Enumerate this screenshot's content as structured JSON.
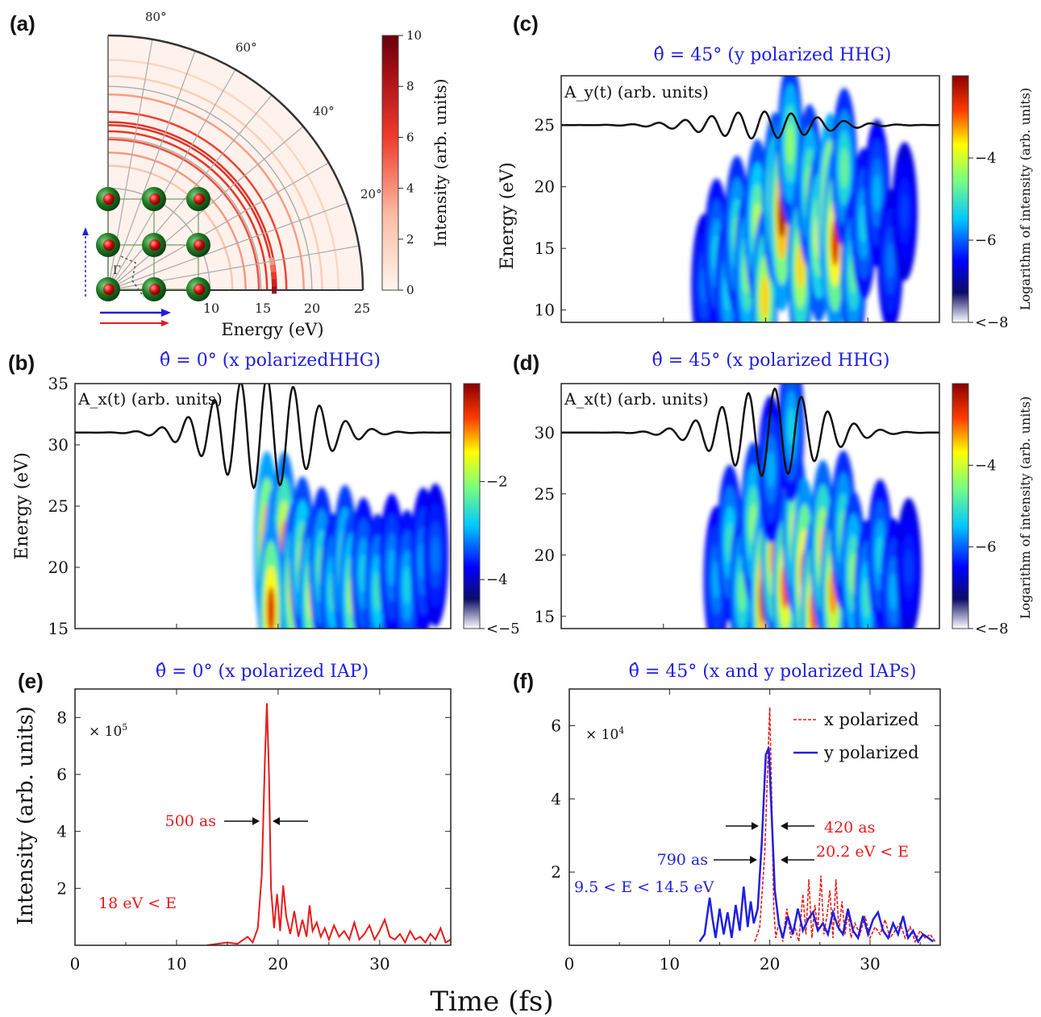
{
  "colors": {
    "blue": "#1f1fe0",
    "red": "#e81b1b",
    "black": "#111111",
    "green": "#1e6b22"
  },
  "panel_letters": [
    "(a)",
    "(b)",
    "(c)",
    "(d)",
    "(e)",
    "(f)"
  ],
  "chart_data": [
    {
      "id": "a",
      "type": "heatmap",
      "subtype": "polar",
      "xlabel": "Energy (eV)",
      "radial_ticks": [
        "10",
        "15",
        "20",
        "25"
      ],
      "angle_ticks": [
        "20°",
        "40°",
        "60°",
        "80°"
      ],
      "colorbar": {
        "label": "Intensity (arb. units)",
        "ticks": [
          "0",
          "2",
          "4",
          "6",
          "8",
          "10"
        ],
        "range": [
          0,
          10
        ]
      },
      "rings_eV": [
        16.2,
        16.5,
        15.6,
        14.8,
        17.5,
        19.2,
        21.0,
        22.6,
        12.2,
        13.5
      ],
      "features": {
        "hot_spot": {
          "angle_deg": 0,
          "energy_eV": 16.3
        }
      }
    },
    {
      "id": "b",
      "type": "heatmap",
      "title": "θ̂ = 0° (x polarizedHHG)",
      "ylabel": "Energy (eV)",
      "ylim": [
        15,
        35
      ],
      "xlim": [
        0,
        37
      ],
      "yticks": [
        "15",
        "20",
        "25",
        "30",
        "35"
      ],
      "inset_label": "A_x(t) (arb. units)",
      "colorbar": {
        "ticks": [
          "−2",
          "−4",
          "<−5"
        ],
        "range": [
          -5,
          0
        ]
      },
      "blobs": [
        {
          "t": 18.9,
          "E": 21.5,
          "v": 0.95
        },
        {
          "t": 19.7,
          "E": 19.0,
          "v": 0.9
        },
        {
          "t": 20.6,
          "E": 22.0,
          "v": 0.8
        },
        {
          "t": 21.5,
          "E": 18.0,
          "v": 0.75
        },
        {
          "t": 22.4,
          "E": 20.5,
          "v": 0.65
        },
        {
          "t": 23.3,
          "E": 17.5,
          "v": 0.7
        },
        {
          "t": 24.3,
          "E": 20.0,
          "v": 0.55
        },
        {
          "t": 25.4,
          "E": 18.0,
          "v": 0.5
        },
        {
          "t": 26.6,
          "E": 20.0,
          "v": 0.6
        },
        {
          "t": 27.3,
          "E": 17.8,
          "v": 0.65
        },
        {
          "t": 28.4,
          "E": 19.5,
          "v": 0.45
        },
        {
          "t": 29.8,
          "E": 18.0,
          "v": 0.5
        },
        {
          "t": 31.2,
          "E": 20.0,
          "v": 0.4
        },
        {
          "t": 32.7,
          "E": 18.5,
          "v": 0.45
        },
        {
          "t": 34.3,
          "E": 20.5,
          "v": 0.4
        },
        {
          "t": 35.5,
          "E": 21.0,
          "v": 0.35
        },
        {
          "t": 19.3,
          "E": 16.5,
          "v": 0.9
        }
      ],
      "vector_potential": {
        "baseline_E": 31,
        "period_fs": 2.6,
        "center_fs": 18.5,
        "width_fs": 6.5,
        "amp_E": 4.6
      }
    },
    {
      "id": "c",
      "type": "heatmap",
      "title": "θ̂ = 45° (y polarized HHG)",
      "ylabel": "Energy (eV)",
      "ylim": [
        9,
        29
      ],
      "xlim": [
        0,
        37
      ],
      "yticks": [
        "10",
        "15",
        "20",
        "25"
      ],
      "inset_label": "A_y(t) (arb. units)",
      "colorbar": {
        "label": "Logarithm of intensity (arb. units)",
        "ticks": [
          "−4",
          "−6",
          "<−8"
        ],
        "range": [
          -8,
          -2
        ]
      },
      "blobs": [
        {
          "t": 14.0,
          "E": 12.0,
          "v": 0.35
        },
        {
          "t": 15.2,
          "E": 14.5,
          "v": 0.45
        },
        {
          "t": 16.3,
          "E": 11.5,
          "v": 0.45
        },
        {
          "t": 17.2,
          "E": 16.0,
          "v": 0.55
        },
        {
          "t": 18.2,
          "E": 13.0,
          "v": 0.6
        },
        {
          "t": 19.2,
          "E": 17.0,
          "v": 0.65
        },
        {
          "t": 19.9,
          "E": 11.0,
          "v": 0.75
        },
        {
          "t": 20.9,
          "E": 19.0,
          "v": 0.7
        },
        {
          "t": 21.6,
          "E": 17.8,
          "v": 0.95
        },
        {
          "t": 22.4,
          "E": 23.5,
          "v": 0.6
        },
        {
          "t": 23.4,
          "E": 13.5,
          "v": 0.75
        },
        {
          "t": 24.3,
          "E": 20.0,
          "v": 0.6
        },
        {
          "t": 25.2,
          "E": 16.0,
          "v": 0.7
        },
        {
          "t": 26.3,
          "E": 18.0,
          "v": 0.97
        },
        {
          "t": 26.8,
          "E": 15.5,
          "v": 0.9
        },
        {
          "t": 27.7,
          "E": 21.5,
          "v": 0.55
        },
        {
          "t": 28.6,
          "E": 13.0,
          "v": 0.55
        },
        {
          "t": 29.6,
          "E": 17.0,
          "v": 0.45
        },
        {
          "t": 30.9,
          "E": 19.5,
          "v": 0.4
        },
        {
          "t": 32.2,
          "E": 14.0,
          "v": 0.35
        },
        {
          "t": 33.6,
          "E": 18.0,
          "v": 0.3
        }
      ],
      "vector_potential": {
        "baseline_E": 25,
        "period_fs": 2.6,
        "center_fs": 19.5,
        "width_fs": 7.5,
        "amp_E": 1.1
      }
    },
    {
      "id": "d",
      "type": "heatmap",
      "title": "θ̂ = 45° (x polarized HHG)",
      "ylim": [
        14,
        34
      ],
      "xlim": [
        0,
        37
      ],
      "yticks": [
        "15",
        "20",
        "25",
        "30"
      ],
      "inset_label": "A_x(t) (arb. units)",
      "colorbar": {
        "label": "Logarithm of intensity (arb. units)",
        "ticks": [
          "−4",
          "−6",
          "<−8"
        ],
        "range": [
          -8,
          -2
        ]
      },
      "blobs": [
        {
          "t": 15.2,
          "E": 18.0,
          "v": 0.4
        },
        {
          "t": 16.5,
          "E": 21.0,
          "v": 0.5
        },
        {
          "t": 17.7,
          "E": 17.0,
          "v": 0.55
        },
        {
          "t": 18.8,
          "E": 22.5,
          "v": 0.6
        },
        {
          "t": 19.8,
          "E": 16.5,
          "v": 0.95
        },
        {
          "t": 20.8,
          "E": 20.0,
          "v": 0.8
        },
        {
          "t": 21.9,
          "E": 17.5,
          "v": 0.85
        },
        {
          "t": 22.9,
          "E": 22.0,
          "v": 0.7
        },
        {
          "t": 23.8,
          "E": 18.5,
          "v": 0.9
        },
        {
          "t": 24.7,
          "E": 15.5,
          "v": 0.85
        },
        {
          "t": 25.6,
          "E": 20.5,
          "v": 0.75
        },
        {
          "t": 26.6,
          "E": 17.0,
          "v": 0.8
        },
        {
          "t": 27.6,
          "E": 22.0,
          "v": 0.55
        },
        {
          "t": 28.6,
          "E": 18.5,
          "v": 0.6
        },
        {
          "t": 29.9,
          "E": 16.5,
          "v": 0.5
        },
        {
          "t": 31.2,
          "E": 20.0,
          "v": 0.45
        },
        {
          "t": 32.5,
          "E": 17.0,
          "v": 0.4
        },
        {
          "t": 34.0,
          "E": 19.0,
          "v": 0.3
        },
        {
          "t": 22.5,
          "E": 30.5,
          "v": 0.45
        },
        {
          "t": 20.5,
          "E": 27.0,
          "v": 0.4
        }
      ],
      "vector_potential": {
        "baseline_E": 30,
        "period_fs": 2.6,
        "center_fs": 20.5,
        "width_fs": 6.5,
        "amp_E": 3.6
      }
    },
    {
      "id": "e",
      "type": "line",
      "title": "θ̂ = 0° (x polarized IAP)",
      "ylabel": "Intensity (arb. units)",
      "xlim": [
        0,
        37
      ],
      "ylim": [
        0,
        9
      ],
      "xticks": [
        "0",
        "10",
        "20",
        "30"
      ],
      "yticks": [
        "2",
        "4",
        "6",
        "8"
      ],
      "multiplier": "× 10",
      "multiplier_exp": "5",
      "annotations": {
        "width": "500 as",
        "range": "18 eV < E"
      },
      "series": [
        {
          "color": "#e81b1b",
          "x": [
            13.0,
            14.0,
            15.0,
            16.0,
            17.0,
            17.5,
            18.0,
            18.4,
            18.7,
            18.9,
            19.1,
            19.3,
            19.6,
            19.9,
            20.2,
            20.5,
            20.8,
            21.2,
            21.6,
            22.0,
            22.4,
            22.8,
            23.1,
            23.4,
            23.8,
            24.2,
            24.6,
            25.0,
            25.5,
            26.0,
            26.5,
            27.0,
            27.5,
            28.0,
            28.5,
            29.0,
            29.5,
            30.0,
            30.5,
            31.0,
            31.5,
            32.0,
            32.5,
            33.0,
            33.5,
            34.0,
            34.5,
            35.0,
            35.5,
            36.0,
            36.5,
            37.0
          ],
          "y": [
            0.0,
            0.05,
            0.1,
            0.05,
            0.3,
            0.1,
            0.6,
            2.5,
            6.5,
            8.5,
            6.0,
            2.0,
            0.6,
            1.8,
            0.5,
            2.1,
            1.0,
            0.4,
            1.2,
            0.3,
            0.9,
            0.3,
            1.4,
            0.5,
            0.8,
            0.3,
            0.6,
            0.2,
            0.7,
            0.3,
            0.5,
            0.2,
            0.8,
            0.2,
            0.4,
            0.7,
            0.2,
            0.5,
            0.9,
            0.3,
            0.2,
            0.4,
            0.1,
            0.5,
            0.2,
            0.3,
            0.1,
            0.4,
            0.2,
            0.6,
            0.1,
            0.2
          ]
        }
      ]
    },
    {
      "id": "f",
      "type": "line",
      "title": "θ̂ = 45° (x and y polarized IAPs)",
      "xlim": [
        0,
        37
      ],
      "ylim": [
        0,
        7
      ],
      "xticks": [
        "0",
        "10",
        "20",
        "30"
      ],
      "yticks": [
        "2",
        "4",
        "6"
      ],
      "xlabel": "Time (fs)",
      "multiplier": "× 10",
      "multiplier_exp": "4",
      "annotations": {
        "width_x": "420 as",
        "range_x": "20.2 eV < E",
        "width_y": "790 as",
        "range_y": "9.5 < E < 14.5 eV"
      },
      "legend": [
        "x polarized",
        "y polarized"
      ],
      "series": [
        {
          "name": "x polarized",
          "color": "#e81b1b",
          "dash": true,
          "x": [
            18.5,
            19.0,
            19.5,
            19.8,
            20.0,
            20.2,
            20.4,
            20.6,
            20.9,
            21.3,
            21.7,
            22.1,
            22.5,
            22.9,
            23.3,
            23.6,
            23.9,
            24.2,
            24.5,
            24.8,
            25.1,
            25.4,
            25.7,
            26.0,
            26.3,
            26.6,
            26.9,
            27.2,
            27.5,
            27.8,
            28.1,
            28.5,
            29.0,
            29.5,
            30.0,
            30.5,
            31.0,
            31.5,
            32.0,
            32.5,
            33.0,
            33.5,
            34.0,
            34.5,
            35.0,
            35.5,
            36.0,
            36.5
          ],
          "y": [
            0.1,
            0.5,
            2.5,
            5.0,
            6.5,
            4.0,
            1.0,
            0.2,
            0.6,
            0.1,
            1.0,
            0.2,
            0.5,
            0.1,
            1.4,
            0.3,
            1.8,
            0.2,
            1.1,
            0.4,
            1.9,
            0.3,
            0.8,
            1.5,
            0.2,
            1.8,
            0.4,
            1.2,
            0.3,
            0.9,
            0.2,
            0.6,
            0.3,
            0.8,
            0.2,
            0.5,
            0.3,
            0.7,
            0.2,
            0.4,
            0.6,
            0.2,
            0.5,
            0.1,
            0.4,
            0.2,
            0.3,
            0.1
          ]
        },
        {
          "name": "y polarized",
          "color": "#1f1fe0",
          "dash": false,
          "x": [
            13.0,
            13.5,
            14.0,
            14.3,
            14.6,
            15.0,
            15.4,
            15.8,
            16.2,
            16.6,
            17.0,
            17.4,
            17.8,
            18.1,
            18.4,
            18.8,
            19.2,
            19.6,
            19.9,
            20.2,
            20.5,
            20.9,
            21.3,
            21.8,
            22.3,
            22.8,
            23.3,
            23.8,
            24.3,
            24.8,
            25.3,
            25.8,
            26.3,
            26.8,
            27.3,
            27.8,
            28.3,
            28.8,
            29.3,
            29.8,
            30.3,
            30.8,
            31.3,
            31.8,
            32.3,
            32.8,
            33.3,
            33.8,
            34.3,
            34.8,
            35.3,
            35.8,
            36.3
          ],
          "y": [
            0.1,
            0.3,
            1.3,
            0.7,
            0.2,
            1.0,
            0.3,
            0.9,
            0.2,
            1.1,
            0.4,
            1.6,
            0.5,
            1.2,
            0.6,
            1.0,
            2.8,
            5.2,
            5.4,
            3.5,
            1.5,
            0.6,
            0.2,
            0.8,
            0.3,
            1.0,
            0.4,
            0.7,
            0.9,
            0.4,
            0.6,
            0.3,
            0.9,
            0.5,
            0.3,
            1.0,
            0.4,
            0.2,
            0.8,
            0.3,
            0.7,
            0.9,
            0.4,
            0.2,
            0.6,
            0.3,
            0.8,
            0.2,
            0.4,
            0.1,
            0.3,
            0.2,
            0.1
          ]
        }
      ]
    }
  ]
}
